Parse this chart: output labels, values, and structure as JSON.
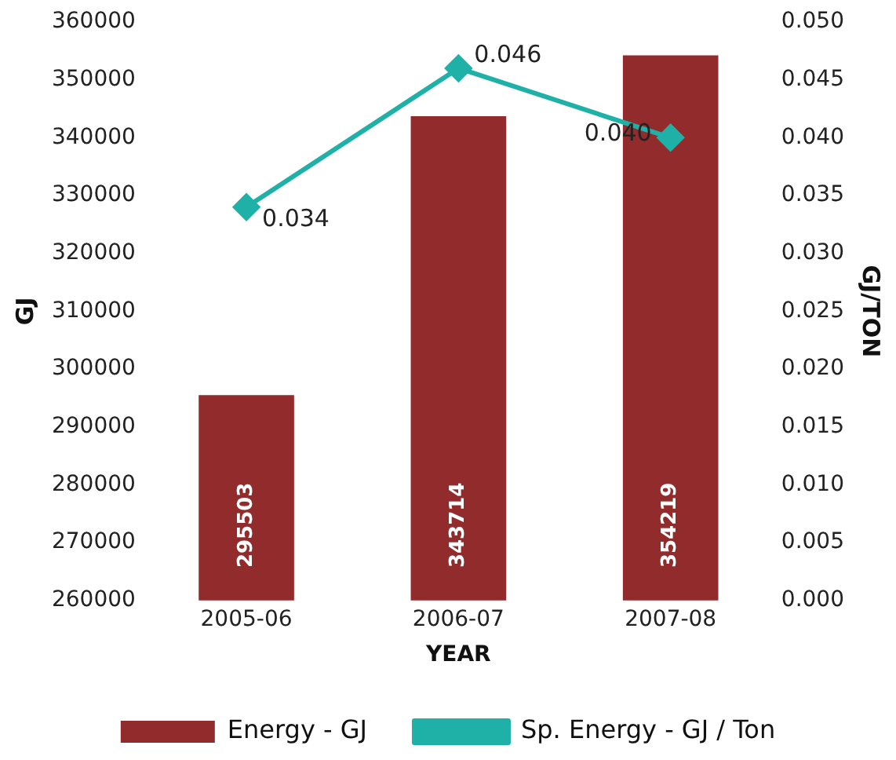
{
  "chart_data": {
    "type": "bar",
    "categories": [
      "2005-06",
      "2006-07",
      "2007-08"
    ],
    "xlabel": "YEAR",
    "ylabel": "GJ",
    "y2label": "GJ/TON",
    "series": [
      {
        "name": "Energy - GJ",
        "color": "#922b2b",
        "values": [
          295503,
          343714,
          354219
        ],
        "value_labels": [
          "295503",
          "343714",
          "354219"
        ]
      },
      {
        "name": "Sp. Energy - GJ / Ton",
        "type": "line",
        "axis": "y2",
        "color": "#1fb0a8",
        "marker": "diamond",
        "values": [
          0.034,
          0.046,
          0.04
        ],
        "value_labels": [
          "0.034",
          "0.046",
          "0.040"
        ]
      }
    ],
    "ylim": [
      260000,
      360000
    ],
    "yticks": [
      260000,
      270000,
      280000,
      290000,
      300000,
      310000,
      320000,
      330000,
      340000,
      350000,
      360000
    ],
    "y2lim": [
      0,
      0.05
    ],
    "y2ticks": [
      {
        "value": 0,
        "label": "0.000"
      },
      {
        "value": 0.005,
        "label": "0.005"
      },
      {
        "value": 0.01,
        "label": "0.010"
      },
      {
        "value": 0.015,
        "label": "0.015"
      },
      {
        "value": 0.02,
        "label": "0.020"
      },
      {
        "value": 0.025,
        "label": "0.025"
      },
      {
        "value": 0.03,
        "label": "0.030"
      },
      {
        "value": 0.035,
        "label": "0.035"
      },
      {
        "value": 0.04,
        "label": "0.040"
      },
      {
        "value": 0.045,
        "label": "0.045"
      },
      {
        "value": 0.05,
        "label": "0.050"
      }
    ],
    "grid": false,
    "legend": "bottom"
  }
}
